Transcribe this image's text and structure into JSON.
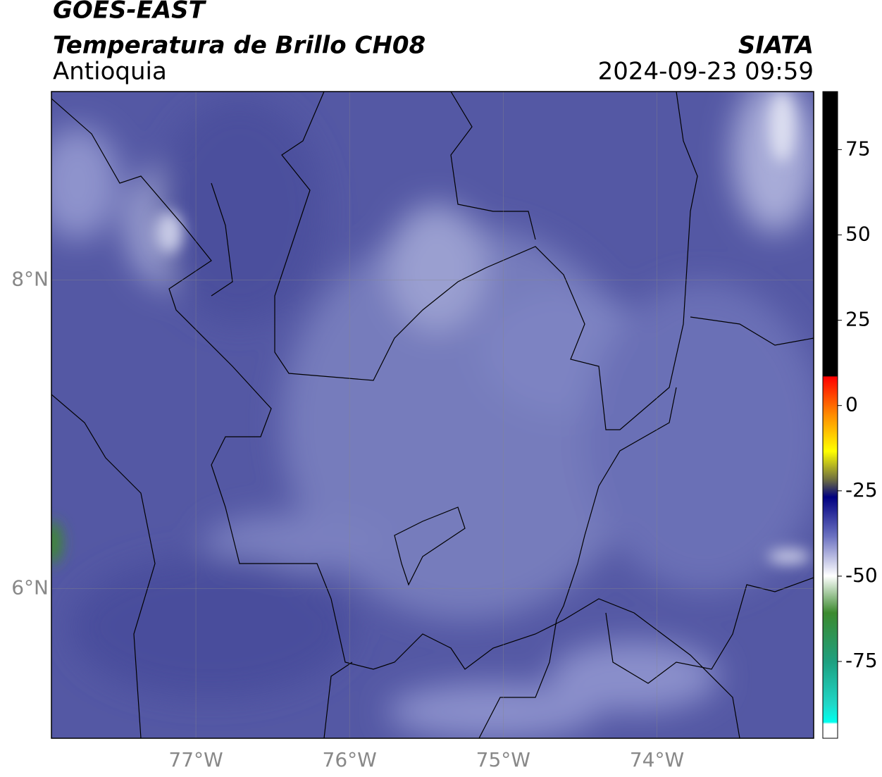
{
  "header": {
    "title": "GOES-EAST",
    "subtitle": "Temperatura de Brillo CH08",
    "region": "Antioquia",
    "source": "SIATA",
    "timestamp": "2024-09-23 09:59"
  },
  "map": {
    "xlim": [
      -77.94,
      -72.98
    ],
    "ylim": [
      5.03,
      9.22
    ],
    "xticks": [
      {
        "value": -77,
        "label": "77°W"
      },
      {
        "value": -76,
        "label": "76°W"
      },
      {
        "value": -75,
        "label": "75°W"
      },
      {
        "value": -74,
        "label": "74°W"
      }
    ],
    "yticks": [
      {
        "value": 8,
        "label": "8°N"
      },
      {
        "value": 6,
        "label": "6°N"
      }
    ]
  },
  "colorbar": {
    "lim": [
      -97.5,
      92
    ],
    "ticks": [
      75,
      50,
      25,
      0,
      -25,
      -50,
      -75
    ]
  }
}
